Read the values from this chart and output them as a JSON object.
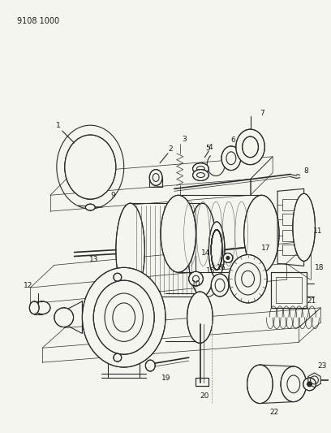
{
  "title_code": "9108 1000",
  "background_color": "#f5f5f0",
  "line_color": "#2a2a2a",
  "label_color": "#1a1a1a",
  "fig_width": 4.08,
  "fig_height": 5.33,
  "dpi": 100,
  "gray_bg": "#e8e8e0"
}
